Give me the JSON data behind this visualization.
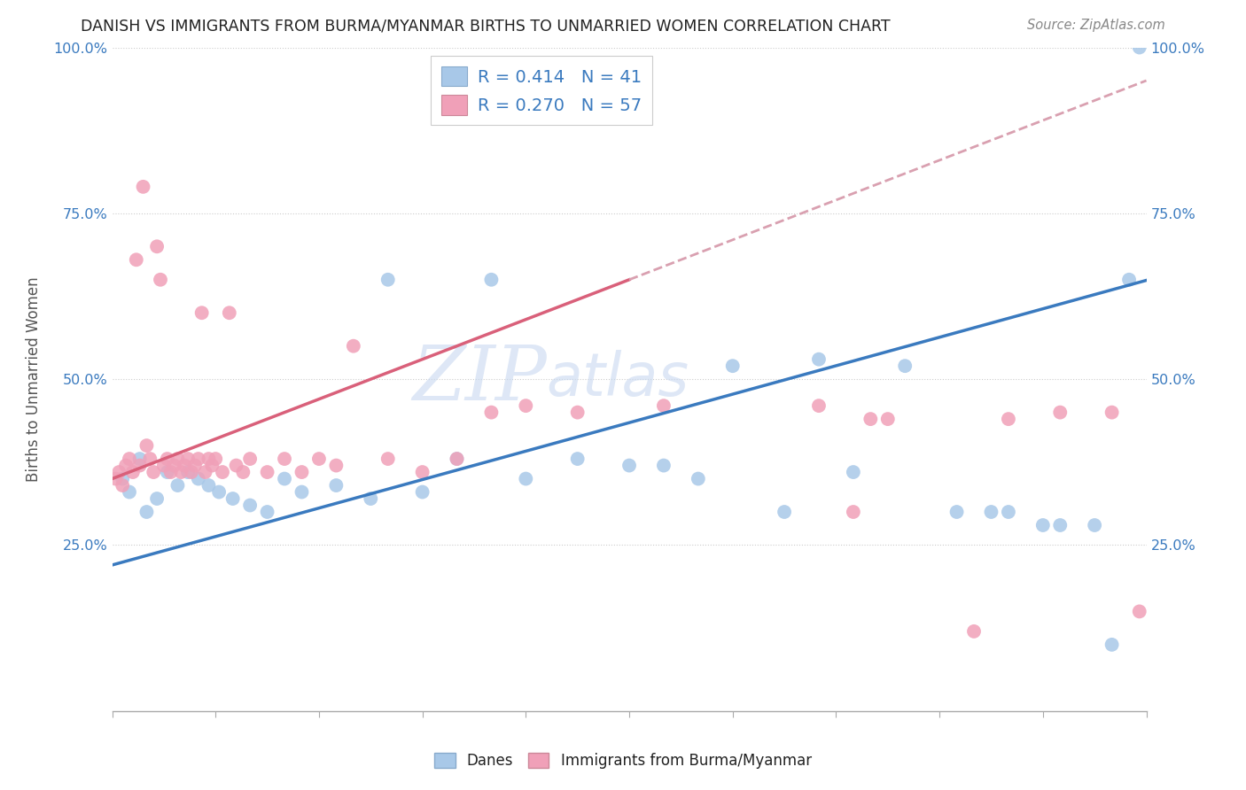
{
  "title": "DANISH VS IMMIGRANTS FROM BURMA/MYANMAR BIRTHS TO UNMARRIED WOMEN CORRELATION CHART",
  "source": "Source: ZipAtlas.com",
  "ylabel": "Births to Unmarried Women",
  "xlim": [
    0.0,
    30.0
  ],
  "ylim": [
    0.0,
    100.0
  ],
  "ytick_vals": [
    25.0,
    50.0,
    75.0,
    100.0
  ],
  "ytick_labels": [
    "25.0%",
    "50.0%",
    "75.0%",
    "100.0%"
  ],
  "blue_label": "Danes",
  "pink_label": "Immigrants from Burma/Myanmar",
  "blue_R": 0.414,
  "blue_N": 41,
  "pink_R": 0.27,
  "pink_N": 57,
  "blue_color": "#a8c8e8",
  "pink_color": "#f0a0b8",
  "blue_line_color": "#3a7abf",
  "pink_line_color": "#d9607a",
  "pink_line_dash_color": "#d9a0b0",
  "watermark_color": "#c8d8f0",
  "blue_intercept": 22.0,
  "blue_slope": 1.43,
  "pink_intercept": 35.0,
  "pink_slope": 2.0,
  "pink_line_end_x": 15.0,
  "blue_scatter_x": [
    0.3,
    0.5,
    0.8,
    1.0,
    1.3,
    1.6,
    1.9,
    2.2,
    2.5,
    2.8,
    3.1,
    3.5,
    4.0,
    4.5,
    5.0,
    5.5,
    6.5,
    7.5,
    8.0,
    9.0,
    10.0,
    11.0,
    12.0,
    13.5,
    15.0,
    16.0,
    17.0,
    18.0,
    19.5,
    20.5,
    21.5,
    23.0,
    24.5,
    25.5,
    26.0,
    27.0,
    27.5,
    28.5,
    29.0,
    29.5,
    29.8
  ],
  "blue_scatter_y": [
    35.0,
    33.0,
    38.0,
    30.0,
    32.0,
    36.0,
    34.0,
    36.0,
    35.0,
    34.0,
    33.0,
    32.0,
    31.0,
    30.0,
    35.0,
    33.0,
    34.0,
    32.0,
    65.0,
    33.0,
    38.0,
    65.0,
    35.0,
    38.0,
    37.0,
    37.0,
    35.0,
    52.0,
    30.0,
    53.0,
    36.0,
    52.0,
    30.0,
    30.0,
    30.0,
    28.0,
    28.0,
    28.0,
    10.0,
    65.0,
    100.0
  ],
  "pink_scatter_x": [
    0.1,
    0.2,
    0.3,
    0.4,
    0.5,
    0.6,
    0.7,
    0.8,
    0.9,
    1.0,
    1.1,
    1.2,
    1.3,
    1.4,
    1.5,
    1.6,
    1.7,
    1.8,
    1.9,
    2.0,
    2.1,
    2.2,
    2.3,
    2.4,
    2.5,
    2.6,
    2.7,
    2.8,
    2.9,
    3.0,
    3.2,
    3.4,
    3.6,
    3.8,
    4.0,
    4.5,
    5.0,
    5.5,
    6.0,
    6.5,
    7.0,
    8.0,
    9.0,
    10.0,
    11.0,
    12.0,
    13.5,
    16.0,
    20.5,
    21.5,
    22.0,
    22.5,
    25.0,
    26.0,
    27.5,
    29.0,
    29.8
  ],
  "pink_scatter_y": [
    35.0,
    36.0,
    34.0,
    37.0,
    38.0,
    36.0,
    68.0,
    37.0,
    79.0,
    40.0,
    38.0,
    36.0,
    70.0,
    65.0,
    37.0,
    38.0,
    36.0,
    37.0,
    38.0,
    36.0,
    37.0,
    38.0,
    36.0,
    37.0,
    38.0,
    60.0,
    36.0,
    38.0,
    37.0,
    38.0,
    36.0,
    60.0,
    37.0,
    36.0,
    38.0,
    36.0,
    38.0,
    36.0,
    38.0,
    37.0,
    55.0,
    38.0,
    36.0,
    38.0,
    45.0,
    46.0,
    45.0,
    46.0,
    46.0,
    30.0,
    44.0,
    44.0,
    12.0,
    44.0,
    45.0,
    45.0,
    15.0
  ]
}
